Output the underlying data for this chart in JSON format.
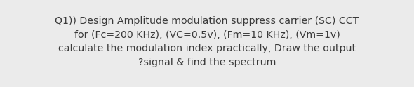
{
  "lines": [
    "Q1)) Design Amplitude modulation suppress carrier (SC) CCT",
    "for (Fc=200 KHz), (VC=0.5v), (Fm=10 KHz), (Vm=1v)",
    "calculate the modulation index practically, Draw the output",
    "?signal & find the spectrum"
  ],
  "background_color": "#ebebeb",
  "text_color": "#3a3a3a",
  "font_size": 10.2,
  "fig_width": 5.9,
  "fig_height": 1.24,
  "dpi": 100
}
